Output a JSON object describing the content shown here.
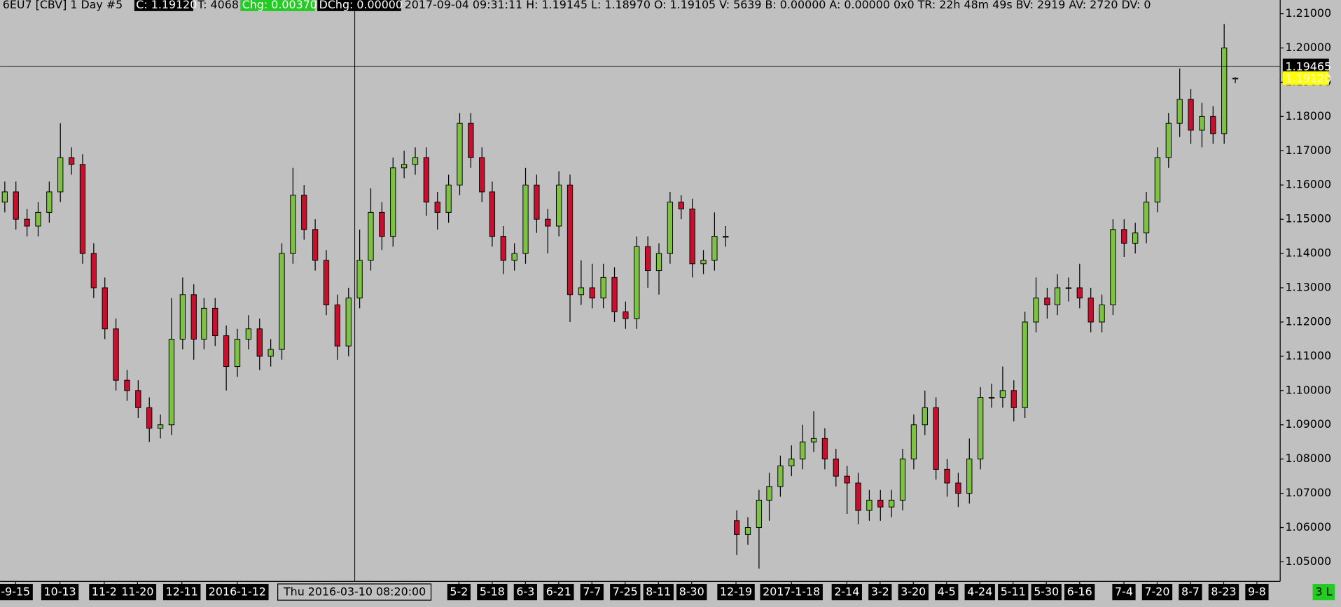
{
  "chart_data": {
    "type": "candlestick",
    "header": [
      "6EU7 [CBV]  1 Day   #5",
      "C: 1.19120",
      "T: 4068",
      "Chg: 0.00370",
      "DChg: 0.00000",
      "2017-09-04 09:31:11 H: 1.19145 L: 1.18970 O: 1.19105 V: 5639 B: 0.00000 A: 0.00000 0x0 TR: 22h 48m 49s BV: 2919 AV: 2720 DV: 0"
    ],
    "status": "3 L",
    "up_color": "#7dc242",
    "down_color": "#c8102e",
    "candles": {
      "open": [
        1.155,
        1.158,
        1.15,
        1.148,
        1.152,
        1.158,
        1.168,
        1.166,
        1.14,
        1.13,
        1.118,
        1.103,
        1.1,
        1.095,
        1.089,
        1.09,
        1.115,
        1.128,
        1.115,
        1.124,
        1.116,
        1.107,
        1.115,
        1.118,
        1.11,
        1.112,
        1.14,
        1.157,
        1.147,
        1.138,
        1.125,
        1.113,
        1.127,
        1.138,
        1.152,
        1.145,
        1.165,
        1.166,
        1.168,
        1.155,
        1.152,
        1.16,
        1.178,
        1.168,
        1.158,
        1.145,
        1.138,
        1.14,
        1.16,
        1.15,
        1.148,
        1.16,
        1.128,
        1.13,
        1.127,
        1.133,
        1.123,
        1.121,
        1.142,
        1.135,
        1.14,
        1.155,
        1.153,
        1.137,
        1.138,
        1.145,
        1.062,
        1.058,
        1.06,
        1.068,
        1.072,
        1.078,
        1.08,
        1.085,
        1.086,
        1.08,
        1.075,
        1.073,
        1.065,
        1.068,
        1.066,
        1.068,
        1.08,
        1.09,
        1.095,
        1.077,
        1.073,
        1.07,
        1.08,
        1.098,
        1.098,
        1.1,
        1.095,
        1.12,
        1.127,
        1.125,
        1.13,
        1.13,
        1.127,
        1.12,
        1.125,
        1.147,
        1.143,
        1.146,
        1.155,
        1.168,
        1.178,
        1.185,
        1.176,
        1.18,
        1.175,
        1.19105
      ],
      "high": [
        1.161,
        1.161,
        1.153,
        1.155,
        1.161,
        1.178,
        1.171,
        1.169,
        1.143,
        1.133,
        1.121,
        1.106,
        1.103,
        1.098,
        1.093,
        1.127,
        1.133,
        1.131,
        1.127,
        1.127,
        1.119,
        1.118,
        1.122,
        1.121,
        1.115,
        1.143,
        1.165,
        1.16,
        1.15,
        1.141,
        1.128,
        1.13,
        1.147,
        1.159,
        1.155,
        1.168,
        1.17,
        1.171,
        1.171,
        1.158,
        1.163,
        1.181,
        1.181,
        1.171,
        1.161,
        1.148,
        1.143,
        1.165,
        1.163,
        1.153,
        1.164,
        1.163,
        1.138,
        1.137,
        1.137,
        1.136,
        1.126,
        1.145,
        1.145,
        1.143,
        1.158,
        1.157,
        1.156,
        1.141,
        1.152,
        1.148,
        1.065,
        1.063,
        1.071,
        1.076,
        1.081,
        1.084,
        1.09,
        1.094,
        1.089,
        1.083,
        1.078,
        1.076,
        1.071,
        1.071,
        1.071,
        1.083,
        1.093,
        1.1,
        1.098,
        1.08,
        1.076,
        1.086,
        1.101,
        1.102,
        1.107,
        1.103,
        1.123,
        1.133,
        1.13,
        1.134,
        1.133,
        1.137,
        1.13,
        1.128,
        1.15,
        1.15,
        1.149,
        1.158,
        1.171,
        1.181,
        1.194,
        1.188,
        1.184,
        1.183,
        1.207,
        1.19145
      ],
      "low": [
        1.152,
        1.147,
        1.145,
        1.145,
        1.149,
        1.155,
        1.163,
        1.137,
        1.127,
        1.115,
        1.1,
        1.097,
        1.092,
        1.085,
        1.086,
        1.087,
        1.112,
        1.109,
        1.112,
        1.113,
        1.1,
        1.104,
        1.112,
        1.106,
        1.107,
        1.109,
        1.137,
        1.144,
        1.135,
        1.122,
        1.109,
        1.11,
        1.124,
        1.135,
        1.141,
        1.142,
        1.162,
        1.163,
        1.151,
        1.147,
        1.149,
        1.157,
        1.165,
        1.155,
        1.142,
        1.134,
        1.135,
        1.137,
        1.146,
        1.14,
        1.145,
        1.12,
        1.125,
        1.124,
        1.124,
        1.12,
        1.118,
        1.118,
        1.13,
        1.128,
        1.137,
        1.15,
        1.133,
        1.134,
        1.135,
        1.142,
        1.052,
        1.055,
        1.048,
        1.062,
        1.069,
        1.075,
        1.077,
        1.082,
        1.077,
        1.072,
        1.064,
        1.061,
        1.062,
        1.062,
        1.063,
        1.065,
        1.077,
        1.087,
        1.074,
        1.069,
        1.066,
        1.067,
        1.077,
        1.095,
        1.095,
        1.091,
        1.092,
        1.117,
        1.121,
        1.122,
        1.126,
        1.124,
        1.117,
        1.117,
        1.122,
        1.139,
        1.14,
        1.143,
        1.152,
        1.165,
        1.174,
        1.172,
        1.171,
        1.172,
        1.172,
        1.1897
      ],
      "close": [
        1.158,
        1.15,
        1.148,
        1.152,
        1.158,
        1.168,
        1.166,
        1.14,
        1.13,
        1.118,
        1.103,
        1.1,
        1.095,
        1.089,
        1.09,
        1.115,
        1.128,
        1.115,
        1.124,
        1.116,
        1.107,
        1.115,
        1.118,
        1.11,
        1.112,
        1.14,
        1.157,
        1.147,
        1.138,
        1.125,
        1.113,
        1.127,
        1.138,
        1.152,
        1.145,
        1.165,
        1.166,
        1.168,
        1.155,
        1.152,
        1.16,
        1.178,
        1.168,
        1.158,
        1.145,
        1.138,
        1.14,
        1.16,
        1.15,
        1.148,
        1.16,
        1.128,
        1.13,
        1.127,
        1.133,
        1.123,
        1.121,
        1.142,
        1.135,
        1.14,
        1.155,
        1.153,
        1.137,
        1.138,
        1.145,
        1.145,
        1.058,
        1.06,
        1.068,
        1.072,
        1.078,
        1.08,
        1.085,
        1.086,
        1.08,
        1.075,
        1.073,
        1.065,
        1.068,
        1.066,
        1.068,
        1.08,
        1.09,
        1.095,
        1.077,
        1.073,
        1.07,
        1.08,
        1.098,
        1.098,
        1.1,
        1.095,
        1.12,
        1.127,
        1.125,
        1.13,
        1.13,
        1.127,
        1.12,
        1.125,
        1.147,
        1.143,
        1.146,
        1.155,
        1.168,
        1.178,
        1.185,
        1.176,
        1.18,
        1.175,
        1.2,
        1.1912
      ]
    },
    "xlim": [
      -0.4,
      115.1
    ],
    "xticks": [
      {
        "value": 1,
        "label": "-9-15"
      },
      {
        "value": 5,
        "label": "10-13"
      },
      {
        "value": 9,
        "label": "11-2"
      },
      {
        "value": 12,
        "label": "11-20"
      },
      {
        "value": 16,
        "label": "12-11"
      },
      {
        "value": 21,
        "label": "2016-1-12"
      },
      {
        "value": 41,
        "label": "5-2"
      },
      {
        "value": 44,
        "label": "5-18"
      },
      {
        "value": 47,
        "label": "6-3"
      },
      {
        "value": 50,
        "label": "6-21"
      },
      {
        "value": 53,
        "label": "7-7"
      },
      {
        "value": 56,
        "label": "7-25"
      },
      {
        "value": 59,
        "label": "8-11"
      },
      {
        "value": 62,
        "label": "8-30"
      },
      {
        "value": 66,
        "label": "12-19"
      },
      {
        "value": 71,
        "label": "2017-1-18"
      },
      {
        "value": 76,
        "label": "2-14"
      },
      {
        "value": 79,
        "label": "3-2"
      },
      {
        "value": 82,
        "label": "3-20"
      },
      {
        "value": 85,
        "label": "4-5"
      },
      {
        "value": 88,
        "label": "4-24"
      },
      {
        "value": 91,
        "label": "5-11"
      },
      {
        "value": 94,
        "label": "5-30"
      },
      {
        "value": 97,
        "label": "6-16"
      },
      {
        "value": 101,
        "label": "7-4"
      },
      {
        "value": 104,
        "label": "7-20"
      },
      {
        "value": 107,
        "label": "8-7"
      },
      {
        "value": 110,
        "label": "8-23"
      },
      {
        "value": 113,
        "label": "9-8"
      }
    ],
    "ylim": [
      1.0443,
      1.214
    ],
    "yticks": [
      {
        "value": 1.05,
        "label": "1.05000"
      },
      {
        "value": 1.06,
        "label": "1.06000"
      },
      {
        "value": 1.07,
        "label": "1.07000"
      },
      {
        "value": 1.08,
        "label": "1.08000"
      },
      {
        "value": 1.09,
        "label": "1.09000"
      },
      {
        "value": 1.1,
        "label": "1.10000"
      },
      {
        "value": 1.11,
        "label": "1.11000"
      },
      {
        "value": 1.12,
        "label": "1.12000"
      },
      {
        "value": 1.13,
        "label": "1.13000"
      },
      {
        "value": 1.14,
        "label": "1.14000"
      },
      {
        "value": 1.15,
        "label": "1.15000"
      },
      {
        "value": 1.16,
        "label": "1.16000"
      },
      {
        "value": 1.17,
        "label": "1.17000"
      },
      {
        "value": 1.18,
        "label": "1.18000"
      },
      {
        "value": 1.19,
        "label": "1.19000"
      },
      {
        "value": 1.2,
        "label": "1.20000"
      },
      {
        "value": 1.21,
        "label": "1.21000"
      }
    ],
    "crosshair": {
      "x": 31.6,
      "x_label": "Thu 2016-03-10  08:20:00",
      "y": 1.19465
    },
    "last_price": {
      "value": 1.1912,
      "label": "1.19120"
    }
  }
}
